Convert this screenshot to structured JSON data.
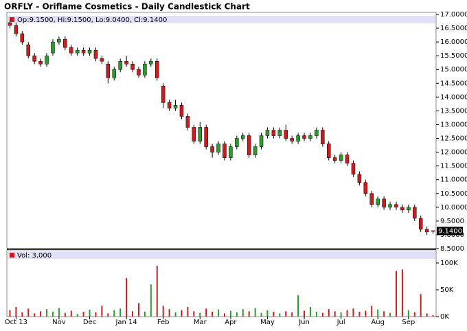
{
  "chart_data": [
    {
      "type": "candlestick",
      "title": "ORFLY - Oriflame Cosmetics - Daily Candlestick Chart",
      "legend_text": "Op:9.1500, Hi:9.1500, Lo:9.0400, Cl:9.1400",
      "last_label": "9.1400",
      "up_color": "#2e9a2e",
      "down_color": "#c81e1e",
      "categories": [
        null,
        "Oct 13",
        null,
        null,
        null,
        null,
        null,
        null,
        "Nov",
        null,
        null,
        null,
        null,
        "Dec",
        null,
        null,
        null,
        null,
        null,
        "Jan 14",
        null,
        null,
        null,
        null,
        null,
        "Feb",
        null,
        null,
        null,
        null,
        null,
        "Mar",
        null,
        null,
        null,
        null,
        "Apr",
        null,
        null,
        null,
        null,
        null,
        "May",
        null,
        null,
        null,
        null,
        null,
        "Jun",
        null,
        null,
        null,
        null,
        null,
        "Jul",
        null,
        null,
        null,
        null,
        null,
        "Aug",
        null,
        null,
        null,
        null,
        "Sep",
        null,
        null,
        null,
        null
      ],
      "open": [
        16.7,
        16.6,
        16.3,
        15.9,
        15.5,
        15.3,
        15.2,
        15.6,
        16.0,
        16.1,
        15.8,
        15.6,
        15.7,
        15.6,
        15.7,
        15.4,
        15.2,
        14.7,
        15.0,
        15.3,
        15.2,
        15.0,
        14.8,
        15.2,
        15.3,
        14.4,
        13.8,
        13.6,
        13.7,
        13.3,
        12.9,
        12.4,
        12.9,
        12.2,
        12.0,
        12.3,
        11.8,
        12.2,
        12.5,
        12.6,
        11.9,
        12.2,
        12.6,
        12.8,
        12.6,
        12.8,
        12.5,
        12.4,
        12.6,
        12.5,
        12.6,
        12.8,
        12.3,
        11.8,
        11.7,
        11.9,
        11.6,
        11.2,
        10.9,
        10.5,
        10.1,
        10.3,
        10.0,
        10.1,
        10.0,
        9.9,
        10.0,
        9.6,
        9.2,
        9.15
      ],
      "high": [
        16.8,
        16.7,
        16.4,
        16.0,
        15.6,
        15.4,
        15.6,
        16.1,
        16.2,
        16.2,
        15.9,
        15.8,
        15.8,
        15.8,
        15.8,
        15.5,
        15.3,
        15.1,
        15.4,
        15.5,
        15.3,
        15.1,
        15.3,
        15.4,
        15.4,
        14.5,
        13.9,
        13.9,
        13.8,
        13.4,
        13.0,
        13.1,
        13.0,
        12.3,
        12.4,
        12.4,
        12.3,
        12.6,
        12.7,
        12.7,
        12.3,
        12.7,
        12.9,
        12.9,
        12.9,
        13.0,
        12.6,
        12.7,
        12.7,
        12.7,
        12.9,
        12.9,
        12.4,
        11.9,
        12.0,
        12.0,
        11.7,
        11.3,
        11.0,
        10.6,
        10.4,
        10.4,
        10.2,
        10.2,
        10.1,
        10.1,
        10.1,
        9.7,
        9.3,
        9.15
      ],
      "low": [
        16.5,
        16.2,
        15.9,
        15.4,
        15.2,
        15.1,
        15.1,
        15.5,
        15.9,
        15.7,
        15.5,
        15.5,
        15.5,
        15.5,
        15.3,
        15.2,
        14.5,
        14.6,
        14.9,
        15.1,
        14.9,
        14.7,
        14.7,
        15.1,
        14.6,
        13.6,
        13.5,
        13.5,
        13.2,
        12.8,
        12.3,
        12.3,
        12.1,
        11.8,
        11.9,
        11.7,
        11.7,
        12.1,
        12.4,
        11.8,
        11.8,
        12.1,
        12.5,
        12.5,
        12.5,
        12.4,
        12.3,
        12.3,
        12.4,
        12.4,
        12.5,
        12.2,
        11.7,
        11.6,
        11.6,
        11.5,
        11.1,
        10.8,
        10.4,
        10.0,
        10.0,
        9.9,
        9.9,
        9.9,
        9.8,
        9.8,
        9.5,
        9.1,
        9.0,
        9.04
      ],
      "close": [
        16.6,
        16.3,
        16.0,
        15.5,
        15.3,
        15.2,
        15.5,
        16.0,
        16.1,
        15.8,
        15.6,
        15.7,
        15.6,
        15.7,
        15.4,
        15.3,
        14.7,
        15.0,
        15.3,
        15.2,
        15.0,
        14.8,
        15.2,
        15.3,
        14.7,
        13.8,
        13.6,
        13.7,
        13.3,
        12.9,
        12.4,
        12.9,
        12.2,
        12.0,
        12.3,
        11.8,
        12.2,
        12.5,
        12.6,
        11.9,
        12.2,
        12.6,
        12.8,
        12.6,
        12.8,
        12.5,
        12.4,
        12.6,
        12.5,
        12.6,
        12.8,
        12.3,
        11.8,
        11.7,
        11.9,
        11.6,
        11.2,
        10.9,
        10.5,
        10.1,
        10.3,
        10.0,
        10.1,
        10.0,
        9.9,
        10.0,
        9.6,
        9.2,
        9.1,
        9.14
      ],
      "ylim": [
        8.5,
        17.0
      ],
      "yticks": [
        {
          "value": 8.5,
          "label": "8.5000"
        },
        {
          "value": 9.0,
          "label": "9.0000"
        },
        {
          "value": 9.5,
          "label": "9.5000"
        },
        {
          "value": 10.0,
          "label": "10.0000"
        },
        {
          "value": 10.5,
          "label": "10.5000"
        },
        {
          "value": 11.0,
          "label": "11.0000"
        },
        {
          "value": 11.5,
          "label": "11.5000"
        },
        {
          "value": 12.0,
          "label": "12.0000"
        },
        {
          "value": 12.5,
          "label": "12.5000"
        },
        {
          "value": 13.0,
          "label": "13.0000"
        },
        {
          "value": 13.5,
          "label": "13.5000"
        },
        {
          "value": 14.0,
          "label": "14.0000"
        },
        {
          "value": 14.5,
          "label": "14.5000"
        },
        {
          "value": 15.0,
          "label": "15.0000"
        },
        {
          "value": 15.5,
          "label": "15.5000"
        },
        {
          "value": 16.0,
          "label": "16.0000"
        },
        {
          "value": 16.5,
          "label": "16.5000"
        },
        {
          "value": 17.0,
          "label": "17.0000"
        }
      ]
    },
    {
      "type": "bar",
      "legend_text": "Vol: 3,000",
      "values": [
        12000,
        18000,
        8000,
        15000,
        6000,
        10000,
        14000,
        9000,
        16000,
        7000,
        11000,
        5000,
        9000,
        13000,
        8000,
        20000,
        6000,
        12000,
        15000,
        72000,
        10000,
        25000,
        9000,
        60000,
        95000,
        20000,
        14000,
        8000,
        12000,
        18000,
        10000,
        7000,
        15000,
        9000,
        13000,
        6000,
        11000,
        8000,
        14000,
        10000,
        16000,
        7000,
        12000,
        9000,
        6000,
        10000,
        8000,
        40000,
        11000,
        18000,
        9000,
        7000,
        14000,
        10000,
        8000,
        12000,
        15000,
        9000,
        11000,
        20000,
        13000,
        10000,
        7000,
        85000,
        88000,
        12000,
        8000,
        42000,
        6000,
        3000
      ],
      "ylim": [
        0,
        105000
      ],
      "yticks": [
        {
          "value": 0,
          "label": "0K"
        },
        {
          "value": 50000,
          "label": "50K"
        },
        {
          "value": 100000,
          "label": "100K"
        }
      ]
    }
  ]
}
